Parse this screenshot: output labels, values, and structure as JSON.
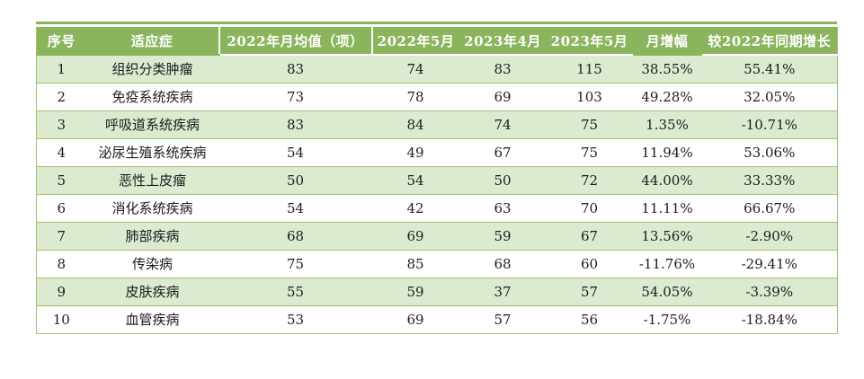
{
  "colors": {
    "header_bg": "#8ab55c",
    "row_alt_bg": "#dcead0",
    "grid_line": "#9cc46e",
    "header_text": "#ffffff",
    "body_text": "#1c1c1c"
  },
  "chart_data": {
    "type": "table",
    "columns": [
      "序号",
      "适应症",
      "2022年月均值（项）",
      "2022年5月",
      "2023年4月",
      "2023年5月",
      "月增幅",
      "较2022年同期增长"
    ],
    "rows": [
      [
        "1",
        "组织分类肿瘤",
        "83",
        "74",
        "83",
        "115",
        "38.55%",
        "55.41%"
      ],
      [
        "2",
        "免疫系统疾病",
        "73",
        "78",
        "69",
        "103",
        "49.28%",
        "32.05%"
      ],
      [
        "3",
        "呼吸道系统疾病",
        "83",
        "84",
        "74",
        "75",
        "1.35%",
        "-10.71%"
      ],
      [
        "4",
        "泌尿生殖系统疾病",
        "54",
        "49",
        "67",
        "75",
        "11.94%",
        "53.06%"
      ],
      [
        "5",
        "恶性上皮瘤",
        "50",
        "54",
        "50",
        "72",
        "44.00%",
        "33.33%"
      ],
      [
        "6",
        "消化系统疾病",
        "54",
        "42",
        "63",
        "70",
        "11.11%",
        "66.67%"
      ],
      [
        "7",
        "肺部疾病",
        "68",
        "69",
        "59",
        "67",
        "13.56%",
        "-2.90%"
      ],
      [
        "8",
        "传染病",
        "75",
        "85",
        "68",
        "60",
        "-11.76%",
        "-29.41%"
      ],
      [
        "9",
        "皮肤疾病",
        "55",
        "59",
        "37",
        "57",
        "54.05%",
        "-3.39%"
      ],
      [
        "10",
        "血管疾病",
        "53",
        "69",
        "57",
        "56",
        "-1.75%",
        "-18.84%"
      ]
    ]
  }
}
